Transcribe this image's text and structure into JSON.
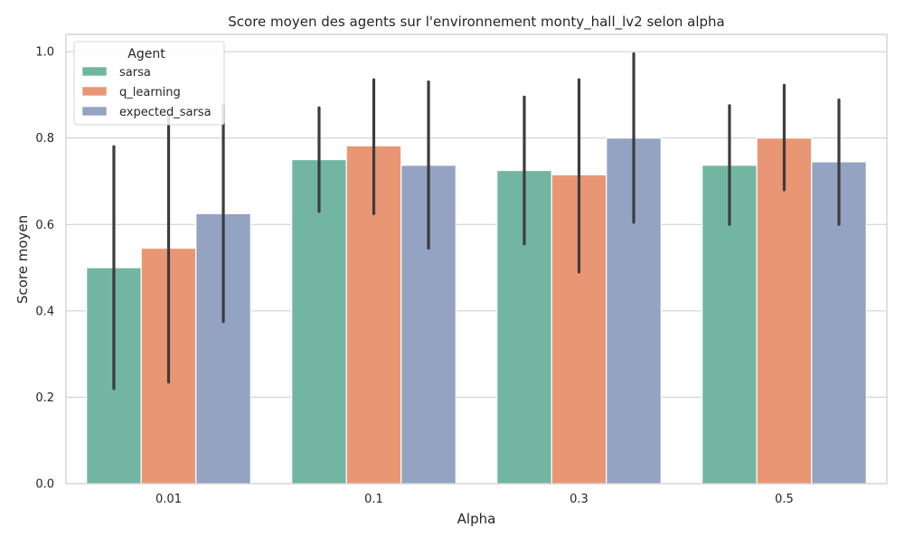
{
  "chart_data": {
    "type": "bar",
    "title": "Score moyen des agents sur l'environnement monty_hall_lv2 selon alpha",
    "xlabel": "Alpha",
    "ylabel": "Score moyen",
    "categories": [
      "0.01",
      "0.1",
      "0.3",
      "0.5"
    ],
    "ylim": [
      0,
      1.04
    ],
    "yticks": [
      "0.0",
      "0.2",
      "0.4",
      "0.6",
      "0.8",
      "1.0"
    ],
    "grid": true,
    "legend": {
      "title": "Agent",
      "placement": "top-left"
    },
    "series": [
      {
        "name": "sarsa",
        "color": "#72b6a1",
        "values": [
          0.5,
          0.75,
          0.725,
          0.737
        ],
        "ci_low": [
          0.22,
          0.63,
          0.555,
          0.6
        ],
        "ci_high": [
          0.78,
          0.87,
          0.895,
          0.875
        ]
      },
      {
        "name": "q_learning",
        "color": "#e99675",
        "values": [
          0.545,
          0.782,
          0.715,
          0.8
        ],
        "ci_low": [
          0.235,
          0.625,
          0.49,
          0.68
        ],
        "ci_high": [
          0.85,
          0.935,
          0.935,
          0.922
        ]
      },
      {
        "name": "expected_sarsa",
        "color": "#95a3c3",
        "values": [
          0.625,
          0.737,
          0.8,
          0.745
        ],
        "ci_low": [
          0.375,
          0.545,
          0.605,
          0.6
        ],
        "ci_high": [
          0.875,
          0.93,
          0.995,
          0.888
        ]
      }
    ]
  }
}
